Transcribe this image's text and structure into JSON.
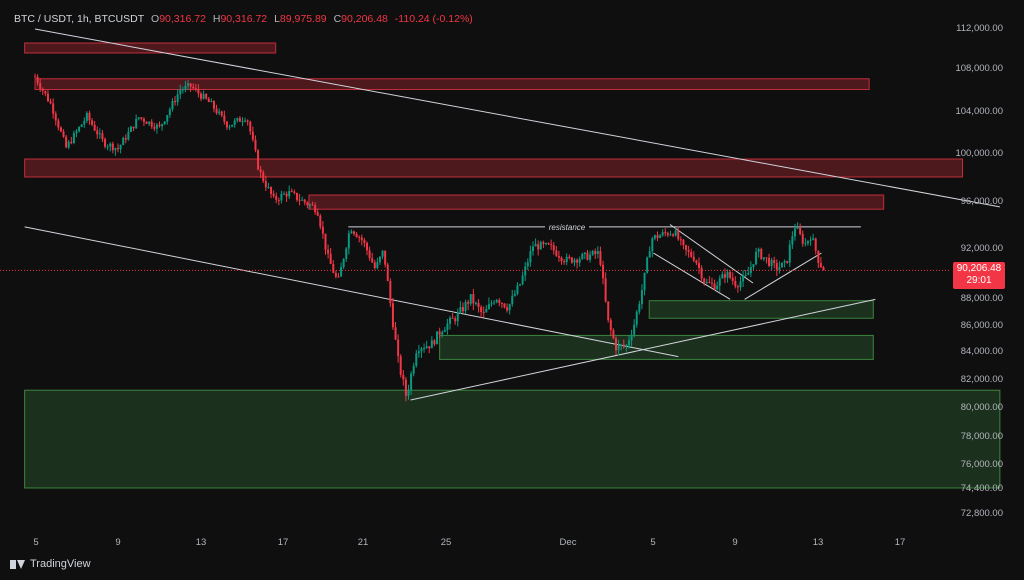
{
  "header": {
    "symbol": "BTC / USDT, 1h, BTCUSDT",
    "open_label": "O",
    "open": "90,316.72",
    "high_label": "H",
    "high": "90,316.72",
    "low_label": "L",
    "low": "89,975.89",
    "close_label": "C",
    "close": "90,206.48",
    "change": "-110.24 (-0.12%)"
  },
  "last_price": {
    "price": "90,206.48",
    "countdown": "29:01"
  },
  "brand": {
    "name": "TradingView"
  },
  "colors": {
    "background": "#0f0f0f",
    "up": "#089981",
    "down": "#f23645",
    "supply_zone": "#f23645",
    "demand_zone": "#4caf50",
    "trendline": "#d1d4dc",
    "axis_text": "#b2b5be"
  },
  "chart_data": {
    "type": "candlestick",
    "y_axis_labels": [
      "112,000.00",
      "108,000.00",
      "104,000.00",
      "100,000.00",
      "96,000.00",
      "92,000.00",
      "88,000.00",
      "86,000.00",
      "84,000.00",
      "82,000.00",
      "80,000.00",
      "78,000.00",
      "76,000.00",
      "74,400.00",
      "72,800.00"
    ],
    "x_axis_labels": [
      "5",
      "9",
      "13",
      "17",
      "21",
      "25",
      "Dec",
      "5",
      "9",
      "13",
      "17"
    ],
    "annotations": [
      {
        "text": "resistance",
        "price": 93800
      }
    ],
    "path": [
      {
        "t": 0,
        "p": 107200
      },
      {
        "t": 0.8,
        "p": 104500
      },
      {
        "t": 1.5,
        "p": 100500
      },
      {
        "t": 2.5,
        "p": 103500
      },
      {
        "t": 3.3,
        "p": 101000
      },
      {
        "t": 4,
        "p": 100400
      },
      {
        "t": 5,
        "p": 103400
      },
      {
        "t": 6,
        "p": 102400
      },
      {
        "t": 7,
        "p": 106000
      },
      {
        "t": 7.5,
        "p": 106300
      },
      {
        "t": 8.5,
        "p": 104600
      },
      {
        "t": 9.3,
        "p": 102600
      },
      {
        "t": 10.2,
        "p": 103500
      },
      {
        "t": 10.8,
        "p": 98500
      },
      {
        "t": 11.5,
        "p": 96100
      },
      {
        "t": 12.2,
        "p": 96700
      },
      {
        "t": 13,
        "p": 95900
      },
      {
        "t": 13.6,
        "p": 95300
      },
      {
        "t": 14.1,
        "p": 91300
      },
      {
        "t": 14.6,
        "p": 89200
      },
      {
        "t": 15.2,
        "p": 93800
      },
      {
        "t": 15.8,
        "p": 92600
      },
      {
        "t": 16.4,
        "p": 90300
      },
      {
        "t": 16.8,
        "p": 91800
      },
      {
        "t": 17.1,
        "p": 87900
      },
      {
        "t": 17.5,
        "p": 83300
      },
      {
        "t": 17.9,
        "p": 80700
      },
      {
        "t": 18.4,
        "p": 84300
      },
      {
        "t": 19.1,
        "p": 84500
      },
      {
        "t": 19.6,
        "p": 85700
      },
      {
        "t": 20.3,
        "p": 86600
      },
      {
        "t": 21,
        "p": 88000
      },
      {
        "t": 21.6,
        "p": 86700
      },
      {
        "t": 22.2,
        "p": 88100
      },
      {
        "t": 22.8,
        "p": 87300
      },
      {
        "t": 23.4,
        "p": 89200
      },
      {
        "t": 24,
        "p": 92200
      },
      {
        "t": 24.8,
        "p": 92100
      },
      {
        "t": 25.6,
        "p": 91000
      },
      {
        "t": 26.5,
        "p": 91300
      },
      {
        "t": 27.2,
        "p": 91600
      },
      {
        "t": 27.6,
        "p": 86300
      },
      {
        "t": 28,
        "p": 84300
      },
      {
        "t": 28.5,
        "p": 84400
      },
      {
        "t": 28.9,
        "p": 86200
      },
      {
        "t": 29.3,
        "p": 89000
      },
      {
        "t": 29.7,
        "p": 92800
      },
      {
        "t": 30.3,
        "p": 93200
      },
      {
        "t": 30.8,
        "p": 93400
      },
      {
        "t": 31.3,
        "p": 91800
      },
      {
        "t": 31.8,
        "p": 91200
      },
      {
        "t": 32.3,
        "p": 89200
      },
      {
        "t": 32.8,
        "p": 89000
      },
      {
        "t": 33.3,
        "p": 90000
      },
      {
        "t": 33.8,
        "p": 89100
      },
      {
        "t": 34.3,
        "p": 89700
      },
      {
        "t": 34.8,
        "p": 91700
      },
      {
        "t": 35.3,
        "p": 91000
      },
      {
        "t": 35.7,
        "p": 90400
      },
      {
        "t": 36.2,
        "p": 90700
      },
      {
        "t": 36.6,
        "p": 93900
      },
      {
        "t": 37.1,
        "p": 92300
      },
      {
        "t": 37.4,
        "p": 93100
      },
      {
        "t": 37.8,
        "p": 90800
      },
      {
        "t": 38.1,
        "p": 90200
      }
    ],
    "supply_zones": [
      {
        "t1": -0.5,
        "t2": 11.6,
        "top": 110500,
        "bottom": 109500
      },
      {
        "t1": 0,
        "t2": 40.2,
        "top": 107000,
        "bottom": 106000
      },
      {
        "t1": -0.5,
        "t2": 44.7,
        "top": 99500,
        "bottom": 98000
      },
      {
        "t1": 13.2,
        "t2": 40.9,
        "top": 96500,
        "bottom": 95300
      }
    ],
    "demand_zones": [
      {
        "t1": 29.6,
        "t2": 40.4,
        "top": 87800,
        "bottom": 86500
      },
      {
        "t1": 19.5,
        "t2": 40.4,
        "top": 85200,
        "bottom": 83400
      },
      {
        "t1": -0.5,
        "t2": 46.5,
        "top": 81200,
        "bottom": 74400
      }
    ],
    "trendlines": [
      {
        "t1": 0,
        "p1": 111900,
        "t2": 46.5,
        "p2": 95500
      },
      {
        "t1": -0.5,
        "p1": 93800,
        "t2": 31,
        "p2": 83600
      },
      {
        "t1": 18.1,
        "p1": 80500,
        "t2": 40.5,
        "p2": 87900
      },
      {
        "t1": 15.1,
        "p1": 93800,
        "t2": 39.8,
        "p2": 93800
      },
      {
        "t1": 30.6,
        "p1": 94000,
        "t2": 34.6,
        "p2": 89200
      },
      {
        "t1": 29.8,
        "p1": 91600,
        "t2": 33.5,
        "p2": 87900
      },
      {
        "t1": 34.2,
        "p1": 87900,
        "t2": 37.9,
        "p2": 91600
      }
    ]
  }
}
